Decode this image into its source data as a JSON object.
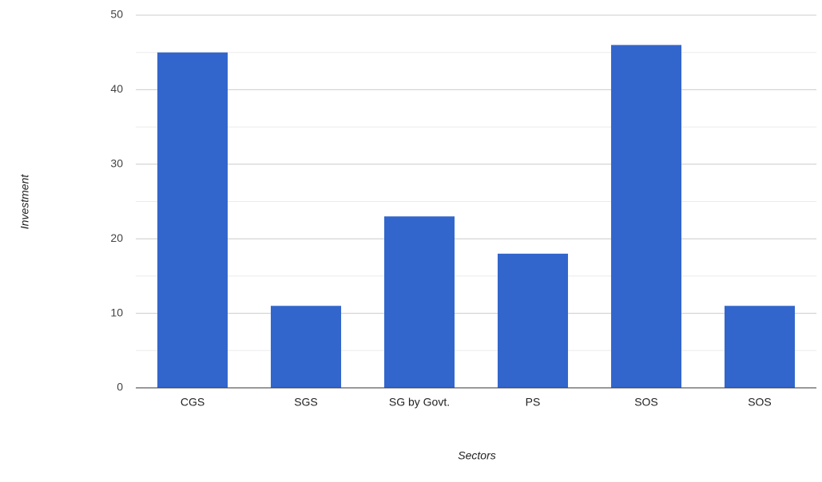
{
  "chart_data": {
    "type": "bar",
    "x_label": "Sectors",
    "y_label": "Investment",
    "categories": [
      "CGS",
      "SGS",
      "SG by Govt.",
      "PS",
      "SOS",
      "SOS"
    ],
    "values": [
      45,
      11,
      23,
      18,
      46,
      11
    ],
    "color": "#3366cc",
    "ylim": [
      0,
      50
    ],
    "yticks": [
      0,
      10,
      20,
      30,
      40,
      50
    ],
    "grid": true
  }
}
